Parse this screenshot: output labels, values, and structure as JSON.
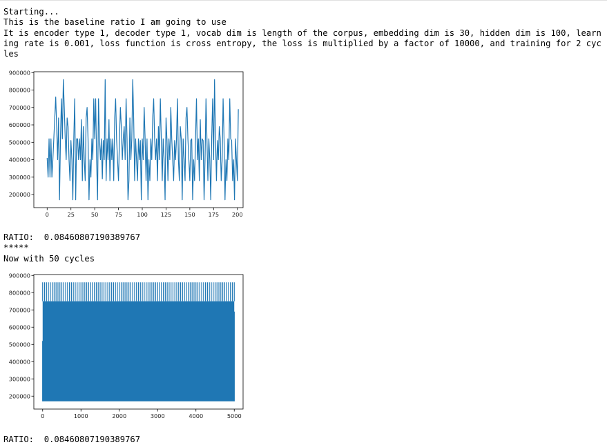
{
  "output": {
    "block1": [
      "Starting...",
      "This is the baseline ratio I am going to use",
      "It is encoder type 1, decoder type 1, vocab dim is length of the corpus, embedding dim is 30, hidden dim is 100, learning rate is 0.001, loss function is cross entropy, the loss is multiplied by a factor of 10000, and training for 2 cycles"
    ],
    "block2": [
      "RATIO:  0.08460807190389767",
      "*****",
      "Now with 50 cycles"
    ],
    "block3": [
      "RATIO:  0.08460807190389767"
    ]
  },
  "chart_data": [
    {
      "type": "line",
      "title": "",
      "xlabel": "",
      "ylabel": "",
      "xlim": [
        -14,
        206
      ],
      "ylim": [
        125000,
        905000
      ],
      "xticks": [
        0,
        25,
        50,
        75,
        100,
        125,
        150,
        175,
        200
      ],
      "yticks": [
        200000,
        300000,
        400000,
        500000,
        600000,
        700000,
        800000,
        900000
      ],
      "series": [
        {
          "color": "#1f77b4",
          "x_start": 0,
          "x_step": 1,
          "values": [
            410000,
            300000,
            520000,
            300000,
            520000,
            300000,
            400000,
            520000,
            640000,
            760000,
            590000,
            400000,
            640000,
            170000,
            520000,
            750000,
            520000,
            860000,
            700000,
            520000,
            400000,
            640000,
            590000,
            400000,
            280000,
            510000,
            400000,
            170000,
            520000,
            750000,
            170000,
            520000,
            520000,
            400000,
            520000,
            400000,
            630000,
            280000,
            590000,
            400000,
            280000,
            640000,
            700000,
            520000,
            170000,
            400000,
            300000,
            520000,
            400000,
            750000,
            520000,
            750000,
            400000,
            170000,
            750000,
            520000,
            400000,
            520000,
            290000,
            510000,
            400000,
            860000,
            280000,
            520000,
            400000,
            630000,
            280000,
            520000,
            400000,
            520000,
            280000,
            640000,
            750000,
            520000,
            400000,
            280000,
            510000,
            700000,
            590000,
            400000,
            520000,
            590000,
            400000,
            750000,
            520000,
            170000,
            280000,
            640000,
            400000,
            520000,
            860000,
            630000,
            280000,
            520000,
            400000,
            280000,
            520000,
            400000,
            510000,
            170000,
            520000,
            400000,
            700000,
            520000,
            280000,
            520000,
            170000,
            400000,
            280000,
            520000,
            400000,
            640000,
            750000,
            520000,
            400000,
            520000,
            280000,
            590000,
            400000,
            750000,
            520000,
            280000,
            520000,
            400000,
            170000,
            640000,
            510000,
            280000,
            520000,
            400000,
            700000,
            520000,
            400000,
            280000,
            510000,
            400000,
            520000,
            750000,
            400000,
            280000,
            590000,
            520000,
            170000,
            520000,
            400000,
            280000,
            640000,
            700000,
            520000,
            400000,
            280000,
            510000,
            520000,
            170000,
            400000,
            280000,
            520000,
            750000,
            400000,
            520000,
            280000,
            630000,
            400000,
            520000,
            510000,
            170000,
            400000,
            750000,
            520000,
            280000,
            520000,
            400000,
            170000,
            520000,
            750000,
            400000,
            860000,
            520000,
            280000,
            510000,
            400000,
            590000,
            520000,
            280000,
            400000,
            750000,
            520000,
            170000,
            400000,
            280000,
            520000,
            400000,
            750000,
            520000,
            510000,
            280000,
            400000,
            170000,
            520000,
            400000,
            280000,
            690000
          ]
        }
      ]
    },
    {
      "type": "line",
      "title": "",
      "xlabel": "",
      "ylabel": "",
      "xlim": [
        -230,
        5230
      ],
      "ylim": [
        125000,
        905000
      ],
      "xticks": [
        0,
        1000,
        2000,
        3000,
        4000,
        5000
      ],
      "yticks": [
        200000,
        300000,
        400000,
        500000,
        600000,
        700000,
        800000,
        900000
      ],
      "band": {
        "x_from": 0,
        "x_to": 5000,
        "y_min": 170000,
        "y_max": 750000,
        "spike_max": 860000,
        "spike_every": 50,
        "start_value": 520000,
        "end_value": 690000
      },
      "series": [
        {
          "color": "#1f77b4"
        }
      ]
    }
  ]
}
